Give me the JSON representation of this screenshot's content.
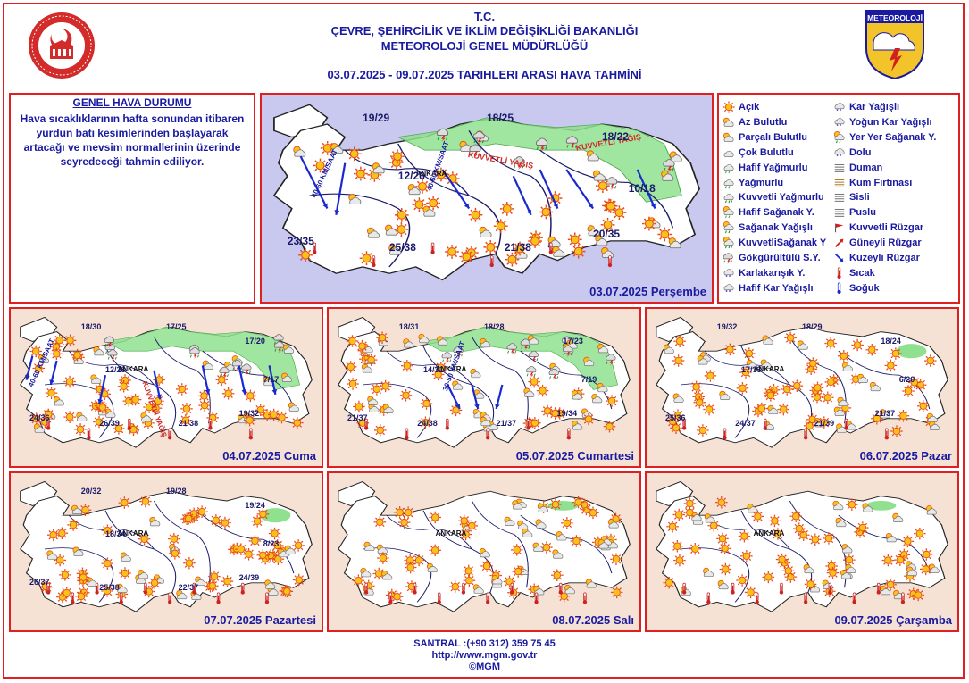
{
  "header": {
    "line1": "T.C.",
    "line2": "ÇEVRE, ŞEHİRCİLİK VE İKLİM DEĞİŞİKLİĞİ BAKANLIĞI",
    "line3": "METEOROLOJİ  GENEL  MÜDÜRLÜĞÜ",
    "line4": "03.07.2025  -  09.07.2025   TARIHLERI  ARASI  HAVA  TAHMİNİ",
    "logo_right": "METEOROLOJİ"
  },
  "general": {
    "title": "GENEL HAVA DURUMU",
    "text": "Hava sıcaklıklarının hafta sonundan itibaren yurdun batı kesimlerinden başlayarak artacağı ve mevsim normallerinin üzerinde seyredeceği tahmin ediliyor."
  },
  "maps": [
    {
      "label": "03.07.2025 Perşembe",
      "temps": [
        "19/29",
        "18/25",
        "18/22",
        "12/26",
        "10/18",
        "23/35",
        "25/38",
        "21/38",
        "20/35"
      ],
      "texts": [
        "40-60 KM/SAAT",
        "40-60 KM/SAAT",
        "KUVVETLİ YAĞIŞ",
        "KUVVETLİ YAĞIŞ"
      ]
    },
    {
      "label": "04.07.2025 Cuma",
      "temps": [
        "18/30",
        "17/25",
        "17/20",
        "12/28",
        "7/17",
        "24/36",
        "26/39",
        "21/38",
        "19/32"
      ],
      "texts": [
        "40-60 KM/SAAT",
        "KUVVETLİ YAĞIŞ"
      ]
    },
    {
      "label": "05.07.2025 Cumartesi",
      "temps": [
        "18/31",
        "18/28",
        "17/23",
        "14/31",
        "7/19",
        "21/37",
        "24/38",
        "21/37",
        "19/34"
      ],
      "texts": [
        "30-50 KM/SAAT"
      ]
    },
    {
      "label": "06.07.2025 Pazar",
      "temps": [
        "19/32",
        "18/29",
        "18/24",
        "17/33",
        "6/20",
        "25/36",
        "24/37",
        "21/39",
        "21/37"
      ],
      "texts": []
    },
    {
      "label": "07.07.2025 Pazartesi",
      "temps": [
        "20/32",
        "19/28",
        "19/24",
        "18/34",
        "8/23",
        "26/37",
        "25/38",
        "22/37",
        "24/39"
      ],
      "texts": []
    },
    {
      "label": "08.07.2025 Salı",
      "temps": [],
      "texts": []
    },
    {
      "label": "09.07.2025 Çarşamba",
      "temps": [],
      "texts": []
    }
  ],
  "city_label": "ANKARA",
  "legend": {
    "left": [
      {
        "label": "Açık",
        "icon": "sun-icon"
      },
      {
        "label": "Az Bulutlu",
        "icon": "few-clouds-icon"
      },
      {
        "label": "Parçalı Bulutlu",
        "icon": "partly-cloudy-icon"
      },
      {
        "label": "Çok Bulutlu",
        "icon": "cloudy-icon"
      },
      {
        "label": "Hafif Yağmurlu",
        "icon": "light-rain-icon"
      },
      {
        "label": "Yağmurlu",
        "icon": "rain-icon"
      },
      {
        "label": "Kuvvetli Yağmurlu",
        "icon": "heavy-rain-icon"
      },
      {
        "label": "Hafif Sağanak Y.",
        "icon": "light-shower-icon"
      },
      {
        "label": "Sağanak Yağışlı",
        "icon": "shower-icon"
      },
      {
        "label": "KuvvetliSağanak Y",
        "icon": "heavy-shower-icon"
      },
      {
        "label": "Gökgürültülü S.Y.",
        "icon": "thunderstorm-icon"
      },
      {
        "label": "Karlakarışık Y.",
        "icon": "sleet-icon"
      },
      {
        "label": "Hafif Kar Yağışlı",
        "icon": "light-snow-icon"
      }
    ],
    "right": [
      {
        "label": "Kar Yağışlı",
        "icon": "snow-icon"
      },
      {
        "label": "Yoğun Kar Yağışlı",
        "icon": "heavy-snow-icon"
      },
      {
        "label": "Yer Yer Sağanak Y.",
        "icon": "scattered-shower-icon"
      },
      {
        "label": "Dolu",
        "icon": "hail-icon"
      },
      {
        "label": "Duman",
        "icon": "smoke-icon"
      },
      {
        "label": "Kum Fırtınası",
        "icon": "sandstorm-icon"
      },
      {
        "label": "Sisli",
        "icon": "fog-icon"
      },
      {
        "label": "Puslu",
        "icon": "haze-icon"
      },
      {
        "label": "Kuvvetli Rüzgar",
        "icon": "strong-wind-icon"
      },
      {
        "label": "Güneyli Rüzgar",
        "icon": "south-wind-icon"
      },
      {
        "label": "Kuzeyli Rüzgar",
        "icon": "north-wind-icon"
      },
      {
        "label": "Sıcak",
        "icon": "hot-icon"
      },
      {
        "label": "Soğuk",
        "icon": "cold-icon"
      }
    ]
  },
  "footer": {
    "phone": "SANTRAL :(+90 312) 359 75 45",
    "url": "http://www.mgm.gov.tr",
    "copyright": "©MGM"
  },
  "colors": {
    "frame": "#e02020",
    "text": "#1a1aa0",
    "sea_first": "#c9c9f0",
    "sea": "#f5e2d4",
    "land": "#ffffff",
    "rain_area": "#8fe08f",
    "wind_arrow": "#1a28d0"
  }
}
